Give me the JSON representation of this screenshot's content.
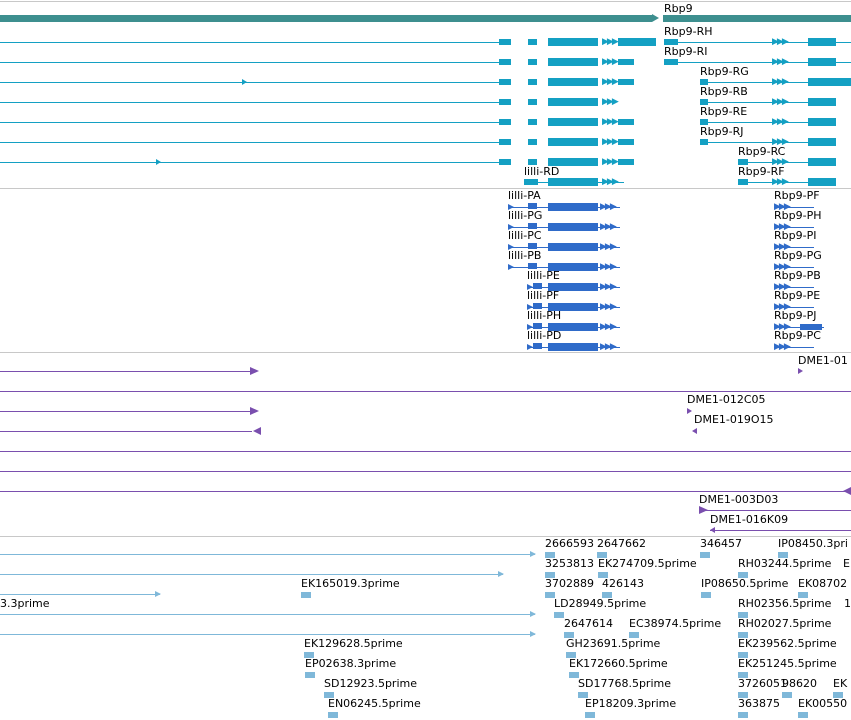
{
  "colors": {
    "gene": "#3d8f8f",
    "mrna": "#14a0c3",
    "protein": "#2f6bc9",
    "cdna": "#7a4fae",
    "est": "#7fb8d9",
    "separator": "#c8c8c8"
  },
  "gene_track": {
    "label": "Rbp9"
  },
  "mrna_track": {
    "labels": [
      "Rbp9-RH",
      "Rbp9-RI",
      "Rbp9-RG",
      "Rbp9-RB",
      "Rbp9-RE",
      "Rbp9-RJ",
      "Rbp9-RC",
      "Rbp9-RF",
      "lilli-RD"
    ]
  },
  "protein_track": {
    "labels": [
      "lilli-PA",
      "lilli-PG",
      "lilli-PC",
      "lilli-PB",
      "lilli-PE",
      "lilli-PF",
      "lilli-PH",
      "lilli-PD",
      "Rbp9-PF",
      "Rbp9-PH",
      "Rbp9-PI",
      "Rbp9-PG",
      "Rbp9-PB",
      "Rbp9-PE",
      "Rbp9-PJ",
      "Rbp9-PC"
    ]
  },
  "cdna_track": {
    "labels": [
      "DME1-01",
      "DME1-012C05",
      "DME1-019O15",
      "DME1-003D03",
      "DME1-016K09"
    ]
  },
  "est_track": {
    "labels": [
      "2666593",
      "2647662",
      "346457",
      "IP08450.3pri",
      "3253813",
      "EK274709.5prime",
      "RH03244.5prime",
      "E",
      "3702889",
      "426143",
      "IP08650.5prime",
      "EK08702",
      "EK165019.3prime",
      "3.3prime",
      "LD28949.5prime",
      "RH02356.5prime",
      "1",
      "2647614",
      "EC38974.5prime",
      "RH02027.5prime",
      "EK129628.5prime",
      "GH23691.5prime",
      "EK239562.5prime",
      "EP02638.3prime",
      "EK172660.5prime",
      "EK251245.5prime",
      "SD12923.5prime",
      "SD17768.5prime",
      "3726051",
      "98620",
      "EK",
      "EN06245.5prime",
      "EP18209.3prime",
      "363875",
      "EK00550"
    ]
  }
}
